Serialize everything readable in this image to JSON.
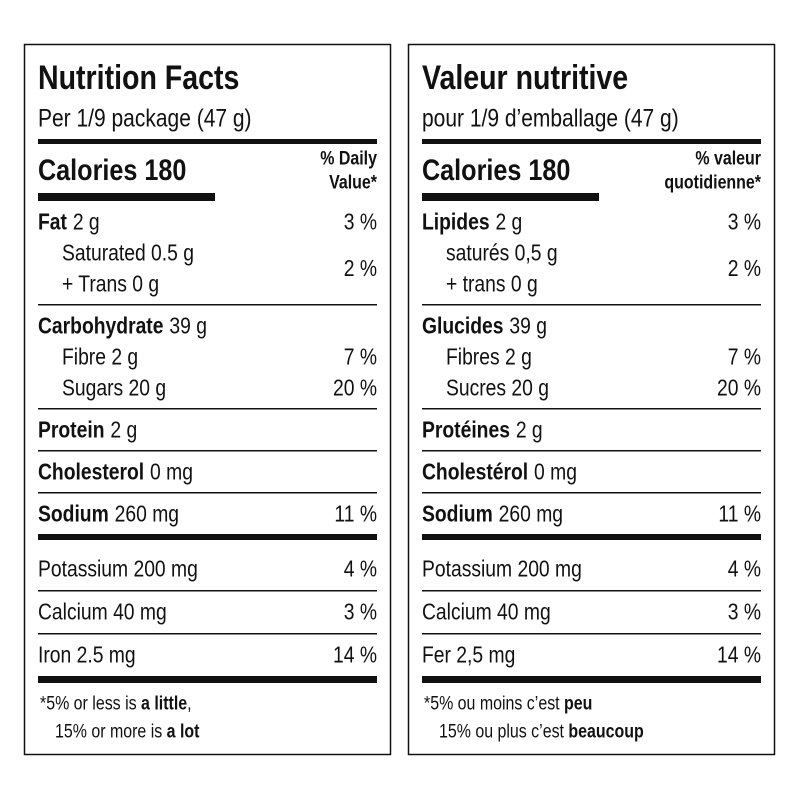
{
  "panels": [
    {
      "title": "Nutrition Facts",
      "serving": "Per 1/9 package (47 g)",
      "calories": "Calories 180",
      "dv_header": [
        "% Daily",
        "Value*"
      ],
      "sections": [
        {
          "main": {
            "name": "Fat",
            "amount": "2 g",
            "dv": "3 %"
          },
          "subs": [
            {
              "lines": [
                "Saturated 0.5 g",
                "+ Trans 0 g"
              ],
              "dv": "2 %"
            }
          ]
        },
        {
          "main": {
            "name": "Carbohydrate",
            "amount": "39 g"
          },
          "subs": [
            {
              "lines": [
                "Fibre 2 g"
              ],
              "dv": "7 %"
            },
            {
              "lines": [
                "Sugars 20 g"
              ],
              "dv": "20 %"
            }
          ]
        },
        {
          "main": {
            "name": "Protein",
            "amount": "2 g"
          }
        },
        {
          "main": {
            "name": "Cholesterol",
            "amount": "0 mg"
          }
        },
        {
          "main": {
            "name": "Sodium",
            "amount": "260 mg",
            "dv": "11 %"
          }
        }
      ],
      "minerals": [
        {
          "label": "Potassium 200 mg",
          "dv": "4 %"
        },
        {
          "label": "Calcium 40 mg",
          "dv": "3 %"
        },
        {
          "label": "Iron 2.5 mg",
          "dv": "14 %"
        }
      ],
      "footnote": [
        [
          {
            "text": "*5% or less is "
          },
          {
            "text": "a little",
            "bold": true
          },
          {
            "text": ","
          }
        ],
        [
          {
            "text": "15% or more is "
          },
          {
            "text": "a lot",
            "bold": true
          }
        ]
      ]
    },
    {
      "title": "Valeur nutritive",
      "serving": "pour 1/9 d’emballage (47 g)",
      "calories": "Calories 180",
      "dv_header": [
        "% valeur",
        "quotidienne*"
      ],
      "sections": [
        {
          "main": {
            "name": "Lipides",
            "amount": "2 g",
            "dv": "3 %"
          },
          "subs": [
            {
              "lines": [
                "saturés 0,5 g",
                "+ trans 0 g"
              ],
              "dv": "2 %"
            }
          ]
        },
        {
          "main": {
            "name": "Glucides",
            "amount": "39 g"
          },
          "subs": [
            {
              "lines": [
                "Fibres 2 g"
              ],
              "dv": "7 %"
            },
            {
              "lines": [
                "Sucres 20 g"
              ],
              "dv": "20 %"
            }
          ]
        },
        {
          "main": {
            "name": "Protéines",
            "amount": "2 g"
          }
        },
        {
          "main": {
            "name": "Cholestérol",
            "amount": "0 mg"
          }
        },
        {
          "main": {
            "name": "Sodium",
            "amount": "260 mg",
            "dv": "11 %"
          }
        }
      ],
      "minerals": [
        {
          "label": "Potassium 200 mg",
          "dv": "4 %"
        },
        {
          "label": "Calcium 40 mg",
          "dv": "3 %"
        },
        {
          "label": "Fer 2,5 mg",
          "dv": "14 %"
        }
      ],
      "footnote": [
        [
          {
            "text": "*5% ou moins c’est "
          },
          {
            "text": "peu",
            "bold": true
          }
        ],
        [
          {
            "text": "15% ou plus c’est "
          },
          {
            "text": "beaucoup",
            "bold": true
          }
        ]
      ]
    }
  ]
}
